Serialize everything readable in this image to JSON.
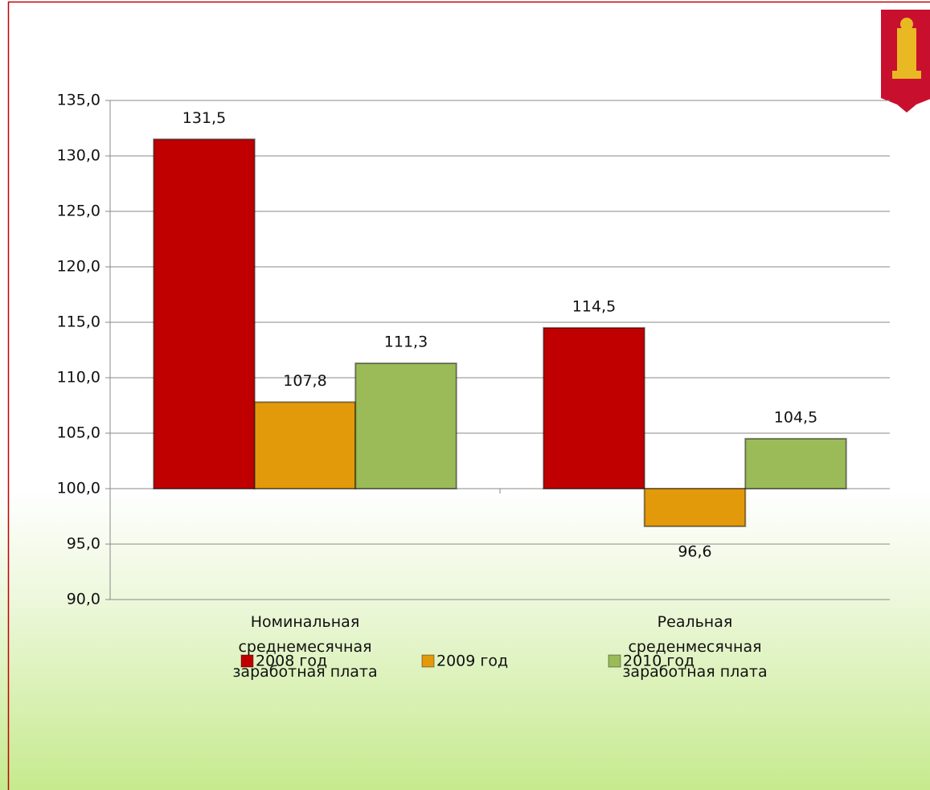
{
  "chart_data": {
    "type": "bar",
    "categories": [
      "Номинальная среднемесячная заработная плата",
      "Реальная среденмесячная заработная плата"
    ],
    "series": [
      {
        "name": "2008 год",
        "color": "#c00000",
        "values": [
          131.5,
          114.5
        ],
        "value_labels": [
          "131,5",
          "114,5"
        ]
      },
      {
        "name": "2009 год",
        "color": "#e39a0a",
        "values": [
          107.8,
          96.6
        ],
        "value_labels": [
          "107,8",
          "96,6"
        ]
      },
      {
        "name": "2010 год",
        "color": "#9bbb59",
        "values": [
          111.3,
          104.5
        ],
        "value_labels": [
          "111,3",
          "104,5"
        ]
      }
    ],
    "ylim": [
      90,
      135
    ],
    "yticks": [
      {
        "value": 90,
        "label": "90,0"
      },
      {
        "value": 95,
        "label": "95,0"
      },
      {
        "value": 100,
        "label": "100,0"
      },
      {
        "value": 105,
        "label": "105,0"
      },
      {
        "value": 110,
        "label": "110,0"
      },
      {
        "value": 115,
        "label": "115,0"
      },
      {
        "value": 120,
        "label": "120,0"
      },
      {
        "value": 125,
        "label": "125,0"
      },
      {
        "value": 130,
        "label": "130,0"
      },
      {
        "value": 135,
        "label": "135,0"
      }
    ],
    "x_axis_crosses": 100,
    "grid": true,
    "legend": "bottom"
  }
}
